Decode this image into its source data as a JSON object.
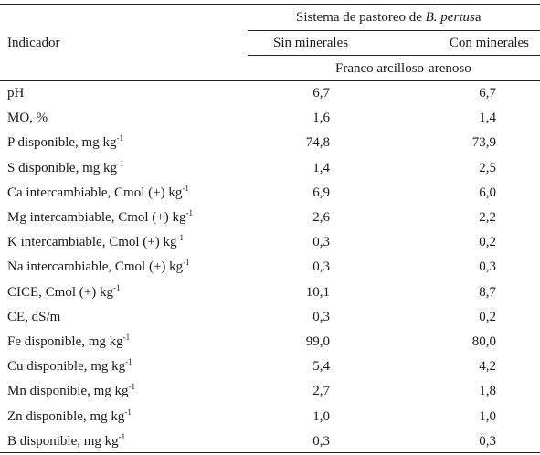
{
  "header": {
    "group_title_prefix": "Sistema de pastoreo de ",
    "group_title_species": "B. pertus",
    "group_title_suffix": "a",
    "indicator_label": "Indicador",
    "col1_label": "Sin minerales",
    "col2_label": "Con minerales",
    "soil_texture": "Franco arcilloso-arenoso"
  },
  "rows": [
    {
      "label": "pH",
      "sup": "",
      "sin": "6,7",
      "con": "6,7"
    },
    {
      "label": "MO, %",
      "sup": "",
      "sin": "1,6",
      "con": "1,4"
    },
    {
      "label": "P disponible, mg kg",
      "sup": "-1",
      "sin": "74,8",
      "con": "73,9"
    },
    {
      "label": "S disponible, mg kg",
      "sup": "-1",
      "sin": "1,4",
      "con": "2,5"
    },
    {
      "label": "Ca intercambiable, Cmol (+) kg",
      "sup": "-1",
      "sin": "6,9",
      "con": "6,0"
    },
    {
      "label": "Mg intercambiable, Cmol (+) kg",
      "sup": "-1",
      "sin": "2,6",
      "con": "2,2"
    },
    {
      "label": "K intercambiable, Cmol (+) kg",
      "sup": "-1",
      "sin": "0,3",
      "con": "0,2"
    },
    {
      "label": "Na intercambiable, Cmol (+) kg",
      "sup": "-1",
      "sin": "0,3",
      "con": "0,3"
    },
    {
      "label": "CICE, Cmol (+) kg",
      "sup": "-1",
      "sin": "10,1",
      "con": "8,7"
    },
    {
      "label": "CE, dS/m",
      "sup": "",
      "sin": "0,3",
      "con": "0,2"
    },
    {
      "label": "Fe disponible, mg kg",
      "sup": "-1",
      "sin": "99,0",
      "con": "80,0"
    },
    {
      "label": "Cu disponible, mg kg",
      "sup": "-1",
      "sin": "5,4",
      "con": "4,2"
    },
    {
      "label": "Mn disponible, mg kg",
      "sup": "-1",
      "sin": "2,7",
      "con": "1,8"
    },
    {
      "label": "Zn disponible, mg kg",
      "sup": "-1",
      "sin": "1,0",
      "con": "1,0"
    },
    {
      "label": "B disponible, mg kg",
      "sup": "-1",
      "sin": "0,3",
      "con": "0,3"
    }
  ]
}
